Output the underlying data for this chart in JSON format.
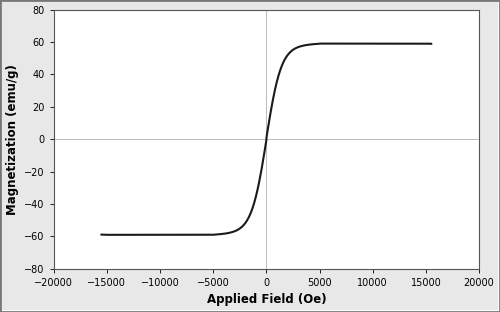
{
  "title": "",
  "xlabel": "Applied Field (Oe)",
  "ylabel": "Magnetization (emu/g)",
  "xlim": [
    -20000,
    20000
  ],
  "ylim": [
    -80,
    80
  ],
  "xticks": [
    -20000,
    -15000,
    -10000,
    -5000,
    0,
    5000,
    10000,
    15000,
    20000
  ],
  "yticks": [
    -80,
    -60,
    -40,
    -20,
    0,
    20,
    40,
    60,
    80
  ],
  "line_color": "#1a1a1a",
  "line_width": 1.5,
  "background_color": "#e8e8e8",
  "plot_bg_color": "#ffffff",
  "grid_color": "#bbbbbb",
  "Ms": 57,
  "Hc": 100,
  "alpha": 1400,
  "xlabel_fontsize": 8.5,
  "ylabel_fontsize": 8.5,
  "tick_fontsize": 7
}
